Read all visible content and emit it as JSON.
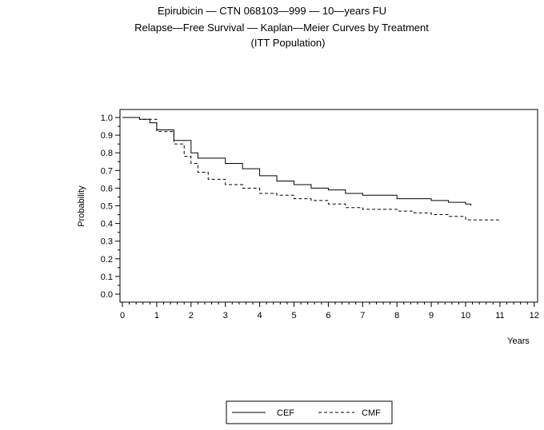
{
  "chart_data": {
    "type": "line",
    "title": [
      "Epirubicin — CTN 068103—999 — 10—years FU",
      "Relapse—Free Survival — Kaplan—Meier Curves by Treatment",
      "(ITT Population)"
    ],
    "xlabel": "Years",
    "ylabel": "Probability",
    "xlim": [
      0,
      12
    ],
    "ylim": [
      0,
      1
    ],
    "xticks": [
      "0",
      "1",
      "2",
      "3",
      "4",
      "5",
      "6",
      "7",
      "8",
      "9",
      "10",
      "11",
      "12"
    ],
    "yticks": [
      "0.0",
      "0.1",
      "0.2",
      "0.3",
      "0.4",
      "0.5",
      "0.6",
      "0.7",
      "0.8",
      "0.9",
      "1.0"
    ],
    "grid": false,
    "legend_position": "bottom",
    "series": [
      {
        "name": "CEF",
        "style": "solid",
        "x": [
          0,
          0.5,
          0.8,
          1,
          1.5,
          2,
          2.2,
          2.5,
          3,
          3.5,
          4,
          4.5,
          5,
          5.5,
          6,
          6.5,
          7,
          7.5,
          8,
          8.5,
          9,
          9.5,
          10,
          10.15
        ],
        "y": [
          1,
          0.99,
          0.97,
          0.93,
          0.87,
          0.8,
          0.77,
          0.77,
          0.74,
          0.71,
          0.67,
          0.64,
          0.62,
          0.6,
          0.59,
          0.57,
          0.56,
          0.56,
          0.54,
          0.54,
          0.53,
          0.52,
          0.51,
          0.5
        ]
      },
      {
        "name": "CMF",
        "style": "dashed",
        "x": [
          0,
          0.5,
          1,
          1.5,
          1.8,
          2,
          2.2,
          2.5,
          3,
          3.5,
          4,
          4.5,
          5,
          5.5,
          6,
          6.5,
          7,
          8,
          8.5,
          9,
          9.5,
          10,
          11
        ],
        "y": [
          1,
          0.99,
          0.92,
          0.85,
          0.78,
          0.74,
          0.69,
          0.65,
          0.62,
          0.6,
          0.57,
          0.56,
          0.54,
          0.53,
          0.51,
          0.49,
          0.48,
          0.47,
          0.46,
          0.45,
          0.44,
          0.42,
          0.41
        ]
      }
    ]
  }
}
